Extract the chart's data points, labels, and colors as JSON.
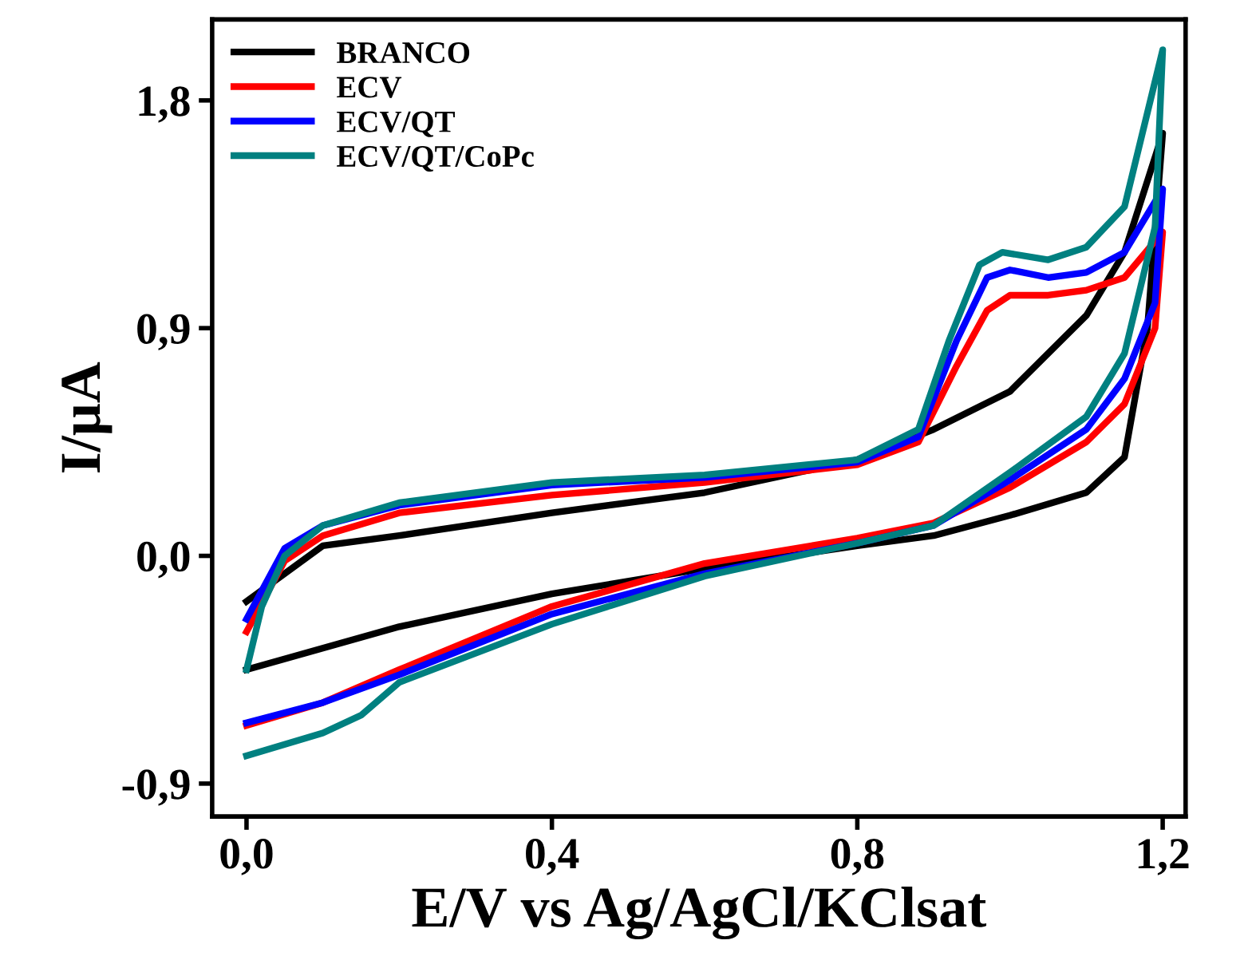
{
  "chart_data": {
    "type": "line",
    "xlabel": "E/V vs Ag/AgCl/KClsat",
    "ylabel": "I/μA",
    "xlim": [
      -0.045,
      1.23
    ],
    "ylim": [
      -1.03,
      2.12
    ],
    "xticks": [
      {
        "value": 0.0,
        "label": "0,0"
      },
      {
        "value": 0.4,
        "label": "0,4"
      },
      {
        "value": 0.8,
        "label": "0,8"
      },
      {
        "value": 1.2,
        "label": "1,2"
      }
    ],
    "yticks": [
      {
        "value": -0.9,
        "label": "-0,9"
      },
      {
        "value": 0.0,
        "label": "0,0"
      },
      {
        "value": 0.9,
        "label": "0,9"
      },
      {
        "value": 1.8,
        "label": "1,8"
      }
    ],
    "legend": "top left",
    "grid": false,
    "series": [
      {
        "name": "BRANCO",
        "color": "#000000",
        "x": [
          0,
          0.1,
          0.2,
          0.4,
          0.6,
          0.8,
          0.9,
          1.0,
          1.1,
          1.15,
          1.2,
          1.18,
          1.15,
          1.1,
          1.0,
          0.9,
          0.8,
          0.6,
          0.4,
          0.2,
          0.0
        ],
        "values": [
          -0.18,
          0.04,
          0.08,
          0.17,
          0.25,
          0.38,
          0.5,
          0.65,
          0.95,
          1.2,
          1.67,
          0.9,
          0.39,
          0.25,
          0.16,
          0.08,
          0.04,
          -0.05,
          -0.15,
          -0.28,
          -0.45
        ]
      },
      {
        "name": "ECV",
        "color": "#ff0000",
        "x": [
          0,
          0.05,
          0.1,
          0.2,
          0.4,
          0.6,
          0.8,
          0.88,
          0.93,
          0.97,
          1.0,
          1.05,
          1.1,
          1.15,
          1.2,
          1.19,
          1.15,
          1.1,
          1.0,
          0.9,
          0.8,
          0.6,
          0.4,
          0.2,
          0.1,
          0.0
        ],
        "values": [
          -0.3,
          -0.02,
          0.08,
          0.17,
          0.24,
          0.29,
          0.36,
          0.45,
          0.75,
          0.97,
          1.03,
          1.03,
          1.05,
          1.1,
          1.28,
          0.9,
          0.6,
          0.45,
          0.27,
          0.13,
          0.07,
          -0.03,
          -0.2,
          -0.45,
          -0.58,
          -0.67
        ]
      },
      {
        "name": "ECV/QT",
        "color": "#0000ff",
        "x": [
          0,
          0.05,
          0.1,
          0.2,
          0.4,
          0.6,
          0.8,
          0.88,
          0.93,
          0.97,
          1.0,
          1.05,
          1.1,
          1.15,
          1.2,
          1.19,
          1.15,
          1.1,
          1.0,
          0.9,
          0.8,
          0.6,
          0.4,
          0.2,
          0.1,
          0.0
        ],
        "values": [
          -0.25,
          0.03,
          0.12,
          0.2,
          0.28,
          0.31,
          0.37,
          0.47,
          0.85,
          1.1,
          1.13,
          1.1,
          1.12,
          1.2,
          1.45,
          1.0,
          0.7,
          0.5,
          0.3,
          0.12,
          0.05,
          -0.07,
          -0.23,
          -0.47,
          -0.58,
          -0.66
        ]
      },
      {
        "name": "ECV/QT/CoPc",
        "color": "#008080",
        "x": [
          0,
          0.02,
          0.05,
          0.1,
          0.2,
          0.4,
          0.6,
          0.8,
          0.88,
          0.92,
          0.96,
          0.99,
          1.05,
          1.1,
          1.15,
          1.2,
          1.19,
          1.15,
          1.1,
          1.0,
          0.9,
          0.8,
          0.6,
          0.4,
          0.2,
          0.15,
          0.1,
          0.0
        ],
        "values": [
          -0.45,
          -0.2,
          0.0,
          0.12,
          0.21,
          0.29,
          0.32,
          0.38,
          0.5,
          0.85,
          1.15,
          1.2,
          1.17,
          1.22,
          1.38,
          2.0,
          1.3,
          0.8,
          0.55,
          0.33,
          0.12,
          0.05,
          -0.08,
          -0.27,
          -0.5,
          -0.63,
          -0.7,
          -0.79
        ]
      }
    ]
  }
}
